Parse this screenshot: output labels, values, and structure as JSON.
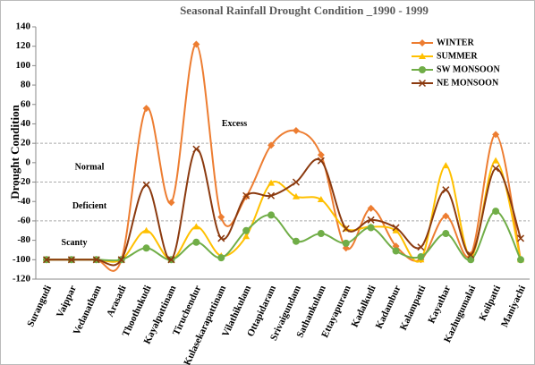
{
  "chart_data": {
    "type": "line",
    "title": "Seasonal Rainfall Drought Condition _1990 - 1999",
    "y_label": "Drought Condition",
    "categories": [
      "Surangudi",
      "Vaippar",
      "Vedanatham",
      "Arasadi",
      "Thoothukudi",
      "Kayalpattinam",
      "Tiruchendur",
      "Kulasekarapattinam",
      "Vilathikulam",
      "Ottapidaram",
      "Srivaigundam",
      "Sathankulam",
      "Ettayapuram",
      "Kadalkudi",
      "Kadambur",
      "Kalampatti",
      "Kayathar",
      "Kazhugumalai",
      "Koilpatti",
      "Maniyachi"
    ],
    "series": [
      {
        "name": "WINTER",
        "color": "#ed7d31",
        "marker": "diamond",
        "values": [
          -100,
          -100,
          -100,
          -100,
          56,
          -41,
          122,
          -56,
          -35,
          18,
          33,
          8,
          -88,
          -47,
          -86,
          -100,
          -55,
          -95,
          29,
          -100
        ]
      },
      {
        "name": "SUMMER",
        "color": "#ffc000",
        "marker": "triangle",
        "values": [
          -100,
          -100,
          -100,
          -100,
          -70,
          -100,
          -66,
          -96,
          -76,
          -21,
          -35,
          -38,
          -68,
          -66,
          -70,
          -100,
          -3,
          -97,
          2,
          -100
        ]
      },
      {
        "name": "SW MONSOON",
        "color": "#70ad47",
        "marker": "circle",
        "values": [
          -100,
          -100,
          -100,
          -100,
          -88,
          -100,
          -82,
          -98,
          -70,
          -54,
          -81,
          -73,
          -83,
          -67,
          -91,
          -97,
          -73,
          -100,
          -50,
          -100
        ]
      },
      {
        "name": "NE MONSOON",
        "color": "#8b3a0f",
        "marker": "x",
        "values": [
          -100,
          -100,
          -100,
          -100,
          -23,
          -100,
          14,
          -78,
          -34,
          -34,
          -20,
          2,
          -68,
          -59,
          -67,
          -87,
          -28,
          -95,
          -6,
          -78
        ]
      }
    ],
    "ylim": [
      -120,
      140
    ],
    "yticks": [
      -120,
      -100,
      -80,
      -60,
      -40,
      -20,
      0,
      20,
      40,
      60,
      80,
      100,
      120,
      140
    ],
    "reference_lines": [
      20,
      -20,
      -60
    ],
    "annotations": [
      {
        "text": "Excess",
        "value": 40
      },
      {
        "text": "Normal",
        "value": -5
      },
      {
        "text": "Deficient",
        "value": -45
      },
      {
        "text": "Scanty",
        "value": -83
      }
    ],
    "legend": "top-right"
  }
}
